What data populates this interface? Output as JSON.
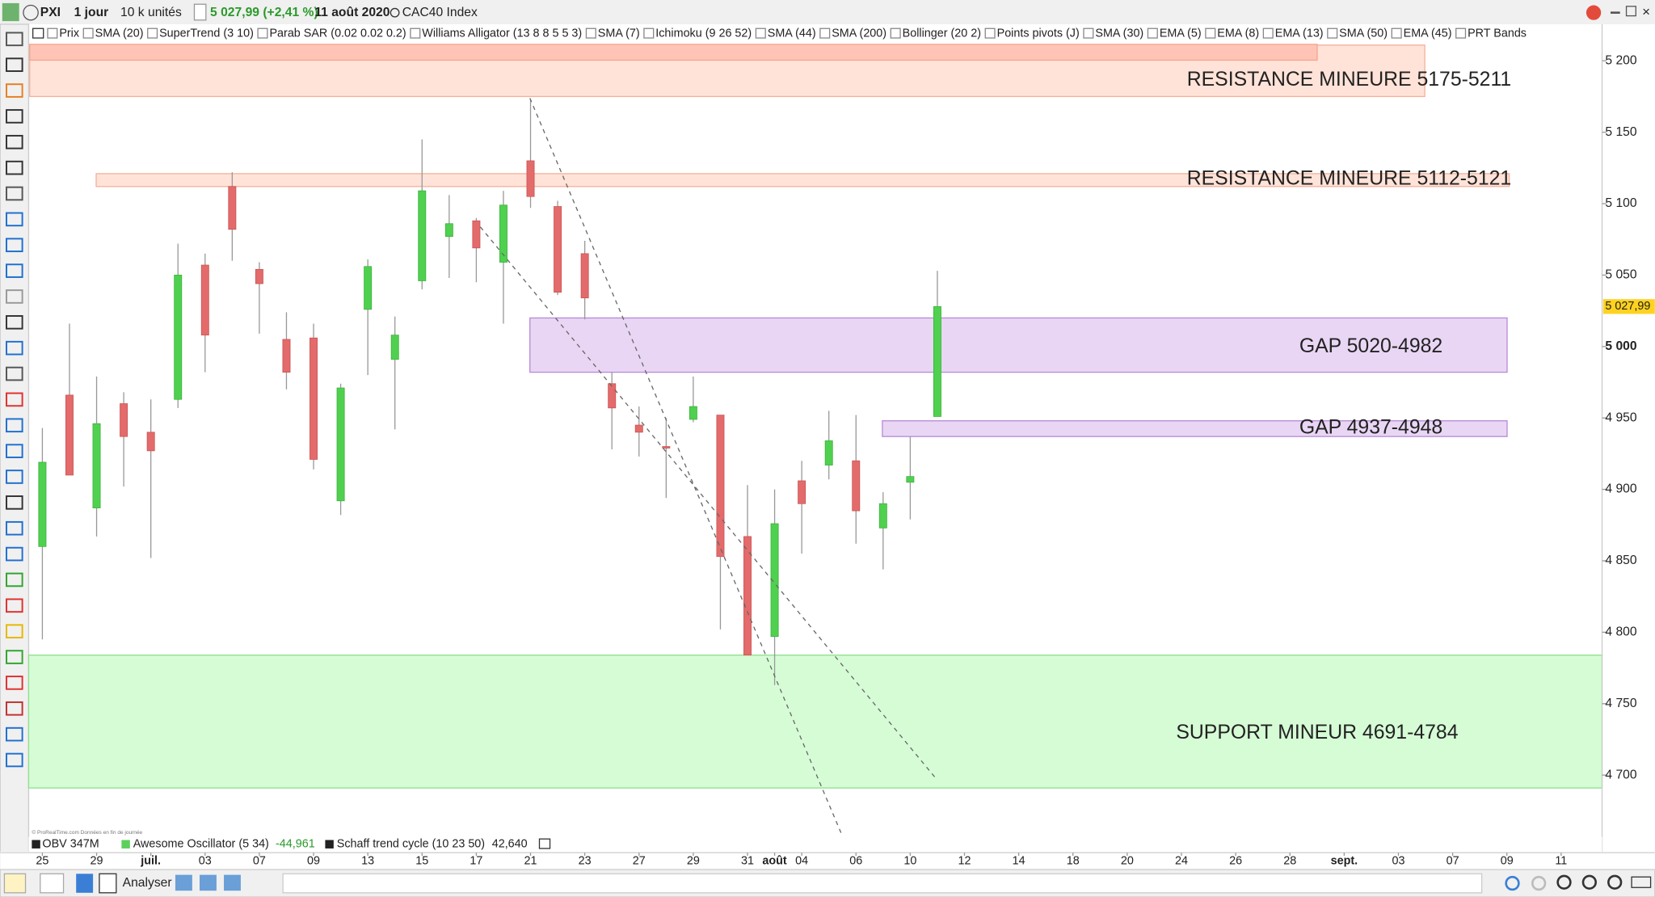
{
  "toolbar": {
    "symbol": "PXI",
    "period": "1 jour",
    "units": "10 k unités",
    "quote": "5 027,99 (+2,41 %)",
    "date": "11 août 2020",
    "name": "CAC40 Index"
  },
  "indicators": [
    "Prix",
    "SMA (20)",
    "SuperTrend (3 10)",
    "Parab SAR (0.02 0.02 0.2)",
    "Williams Alligator (13 8 8 5 5 3)",
    "SMA (7)",
    "Ichimoku (9 26 52)",
    "SMA (44)",
    "SMA (200)",
    "Bollinger (20 2)",
    "Points pivots (J)",
    "SMA (30)",
    "EMA (5)",
    "EMA (8)",
    "EMA (13)",
    "SMA (50)",
    "EMA (45)",
    "PRT Bands"
  ],
  "copyright": "© ProRealTime.com Données en fin de journée",
  "panels": {
    "obv": "OBV 347M",
    "ao": "Awesome Oscillator (5 34)",
    "ao_value": "-44,961",
    "stc": "Schaff trend cycle (10 23 50)",
    "stc_value": "42,640"
  },
  "bottom_bar": {
    "analyse": "Analyser"
  },
  "chart_data": {
    "type": "candlestick",
    "categories": [
      "25",
      null,
      "29",
      null,
      "juil.",
      null,
      "03",
      null,
      "07",
      null,
      "09",
      null,
      "13",
      null,
      "15",
      null,
      "17",
      null,
      "21",
      null,
      "23",
      null,
      "27",
      null,
      "29",
      null,
      "31",
      "août",
      "04",
      null,
      "06",
      null,
      "10",
      null,
      "12",
      null,
      "14",
      null,
      "18",
      null,
      "20",
      null,
      "24",
      null,
      "26",
      null,
      "28",
      null,
      "sept.",
      null,
      "03",
      null,
      "07",
      null,
      "09",
      null,
      "11"
    ],
    "open": [
      4860,
      4966,
      4887,
      4960,
      4940,
      4963,
      5057,
      5112,
      5054,
      5005,
      5006,
      4892,
      5026,
      4991,
      5046,
      5077,
      5088,
      5059,
      5130,
      5098,
      5065,
      4974,
      4945,
      4930,
      4949,
      4952,
      4867,
      4797,
      4906,
      4917,
      4920,
      4873,
      4905,
      4951,
      null,
      null,
      null,
      null,
      null,
      null,
      null,
      null,
      null,
      null,
      null,
      null,
      null,
      null,
      null,
      null,
      null,
      null,
      null,
      null,
      null,
      null,
      null
    ],
    "high": [
      4943,
      5016,
      4979,
      4968,
      4963,
      5072,
      5065,
      5122,
      5059,
      5024,
      5016,
      4974,
      5061,
      5021,
      5145,
      5106,
      5090,
      5109,
      5173,
      5102,
      5074,
      4982,
      4958,
      4950,
      4979,
      4952,
      4903,
      4900,
      4920,
      4955,
      4952,
      4898,
      4937,
      5053,
      null,
      null,
      null,
      null,
      null,
      null,
      null,
      null,
      null,
      null,
      null,
      null,
      null,
      null,
      null,
      null,
      null,
      null,
      null,
      null,
      null,
      null,
      null
    ],
    "low": [
      4795,
      4910,
      4867,
      4902,
      4852,
      4957,
      4982,
      5060,
      5009,
      4970,
      4914,
      4882,
      4980,
      4942,
      5040,
      5048,
      5045,
      5016,
      5097,
      5036,
      5019,
      4928,
      4923,
      4894,
      4947,
      4802,
      4784,
      4763,
      4855,
      4907,
      4862,
      4844,
      4879,
      4951,
      null,
      null,
      null,
      null,
      null,
      null,
      null,
      null,
      null,
      null,
      null,
      null,
      null,
      null,
      null,
      null,
      null,
      null,
      null,
      null,
      null,
      null,
      null
    ],
    "close": [
      4919,
      4910,
      4946,
      4937,
      4927,
      5050,
      5008,
      5082,
      5044,
      4982,
      4921,
      4971,
      5056,
      5008,
      5109,
      5086,
      5069,
      5099,
      5105,
      5038,
      5034,
      4957,
      4940,
      4929,
      4958,
      4853,
      4784,
      4876,
      4890,
      4934,
      4885,
      4890,
      4909,
      5027.99,
      null,
      null,
      null,
      null,
      null,
      null,
      null,
      null,
      null,
      null,
      null,
      null,
      null,
      null,
      null,
      null,
      null,
      null,
      null,
      null,
      null,
      null,
      null
    ],
    "last_value_label": "5 027,99",
    "up_color": "#4fd14f",
    "down_color": "#e46b6b",
    "ylim": [
      4659,
      5213
    ],
    "yticks": [
      {
        "value": 4700,
        "label": "4 700"
      },
      {
        "value": 4750,
        "label": "4 750"
      },
      {
        "value": 4800,
        "label": "4 800"
      },
      {
        "value": 4850,
        "label": "4 850"
      },
      {
        "value": 4900,
        "label": "4 900"
      },
      {
        "value": 4950,
        "label": "4 950"
      },
      {
        "value": 5000,
        "label": "5 000"
      },
      {
        "value": 5050,
        "label": "5 050"
      },
      {
        "value": 5100,
        "label": "5 100"
      },
      {
        "value": 5150,
        "label": "5 150"
      },
      {
        "value": 5200,
        "label": "5 200"
      }
    ],
    "zones": [
      {
        "label": "RESISTANCE MINEURE 5175-5211",
        "low": 5175,
        "high": 5211,
        "color": "#ffe3d8",
        "border": "#f4b09a"
      },
      {
        "label": "RESISTANCE MINEURE 5112-5121",
        "low": 5112,
        "high": 5121,
        "color": "#ffe3d8",
        "border": "#f4b09a"
      },
      {
        "label": "GAP 5020-4982",
        "low": 4982,
        "high": 5020,
        "color": "#e9d6f4",
        "border": "#b68ad8"
      },
      {
        "label": "GAP 4937-4948",
        "low": 4937,
        "high": 4948,
        "color": "#e9d6f4",
        "border": "#b68ad8"
      },
      {
        "label": "SUPPORT MINEUR 4691-4784",
        "low": 4691,
        "high": 4784,
        "color": "#d6fcd6",
        "border": "#8fe08f"
      }
    ]
  }
}
